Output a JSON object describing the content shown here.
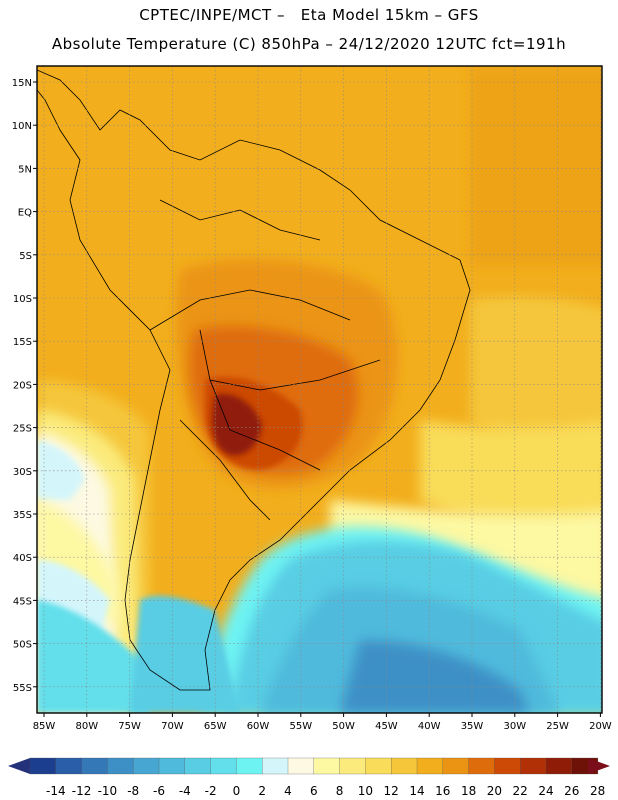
{
  "header": {
    "line1": "CPTEC/INPE/MCT –   Eta Model 15km – GFS",
    "line2": "Absolute Temperature (C) 850hPa – 24/12/2020 12UTC fct=191h"
  },
  "map": {
    "lat_labels": [
      "15N",
      "10N",
      "5N",
      "EQ",
      "5S",
      "10S",
      "15S",
      "20S",
      "25S",
      "30S",
      "35S",
      "40S",
      "45S",
      "50S",
      "55S"
    ],
    "lon_labels": [
      "85W",
      "80W",
      "75W",
      "70W",
      "65W",
      "60W",
      "55W",
      "50W",
      "45W",
      "40W",
      "35W",
      "30W",
      "25W",
      "20W"
    ]
  },
  "colorbar": {
    "labels": [
      "-14",
      "-12",
      "-10",
      "-8",
      "-6",
      "-4",
      "-2",
      "0",
      "2",
      "4",
      "6",
      "8",
      "10",
      "12",
      "14",
      "16",
      "18",
      "20",
      "22",
      "24",
      "26",
      "28"
    ],
    "colors": [
      "#1b3f8e",
      "#2a5ea8",
      "#3478b8",
      "#3d90c6",
      "#48a6d2",
      "#4fbadc",
      "#58cde4",
      "#62dfeb",
      "#6ef3f3",
      "#d4f6fb",
      "#fdf9e2",
      "#fdf8a2",
      "#fbeb7c",
      "#f9dc59",
      "#f5c63a",
      "#f2ae1c",
      "#eb9414",
      "#df6c0a",
      "#cc4a06",
      "#b13006",
      "#8f1c07",
      "#6e1106"
    ],
    "low_cap_color": "#23327a",
    "high_cap_color": "#7a0e1a"
  }
}
